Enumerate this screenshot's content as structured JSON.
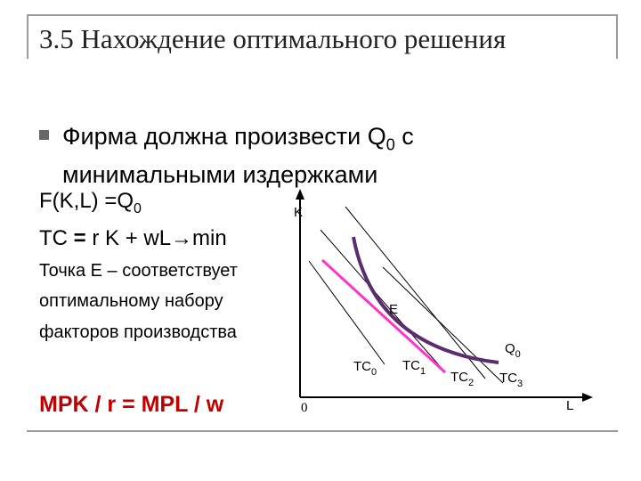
{
  "title": "3.5 Нахождение оптимального решения",
  "bullet": {
    "text_main": "Фирма должна произвести Q",
    "text_sub": "0",
    "text_end": " с минимальными издержками"
  },
  "production": {
    "main": "F(K,L) =Q",
    "sub": "0"
  },
  "cost": {
    "prefix": "TC ",
    "eq": "=",
    "rest": " r K + wL→min"
  },
  "description": [
    "Точка Е – соответствует",
    "оптимальному набору",
    "факторов производства"
  ],
  "formula": "MPK / r = MPL / w",
  "diagram": {
    "axis_y_label": "K",
    "axis_x_label": "L",
    "origin_label": "0",
    "point_label": "E",
    "isoquant_label": {
      "main": "Q",
      "sub": "0"
    },
    "isocost_labels": [
      {
        "main": "TC",
        "sub": "0"
      },
      {
        "main": "TC",
        "sub": "1"
      },
      {
        "main": "TC",
        "sub": "2"
      },
      {
        "main": "TC",
        "sub": "3"
      }
    ],
    "colors": {
      "isoquant": "#5b2c6f",
      "tangent": "#ff33cc",
      "axis": "#000000"
    }
  }
}
